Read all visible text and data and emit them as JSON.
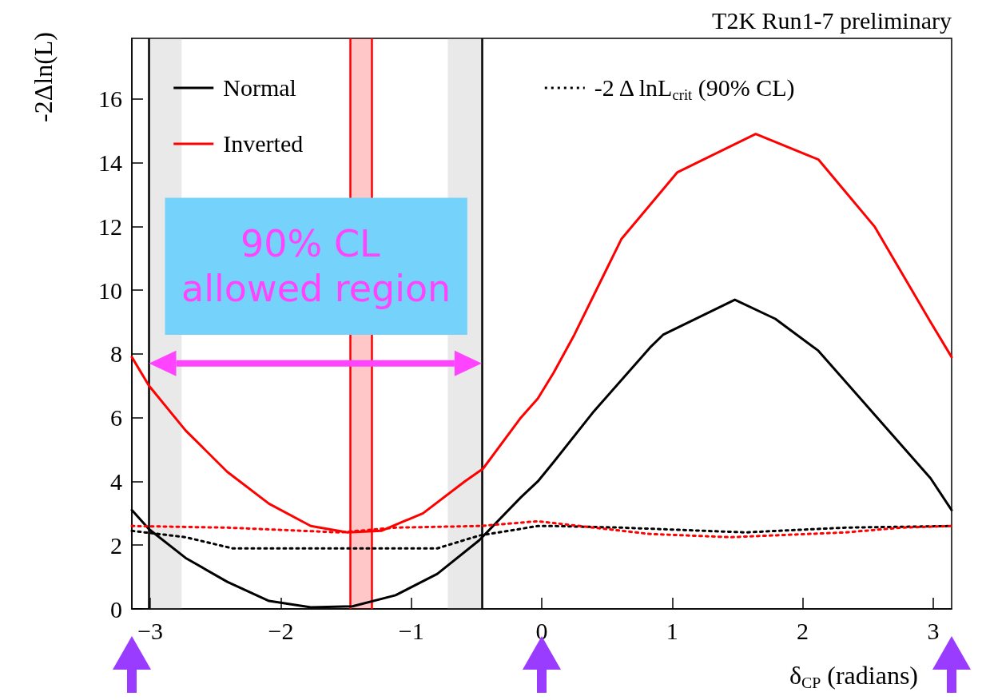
{
  "chart_data": {
    "type": "line",
    "annotations": [
      "T2K Run1-7 preliminary",
      "90% CL allowed region"
    ],
    "xlabel": "δ$_{CP}$ (radians)",
    "ylabel": "-2Δln(L)",
    "xlim": [
      -3.1416,
      3.1416
    ],
    "ylim": [
      0,
      17.9
    ],
    "xticks": [
      {
        "value": -3,
        "label": "−3"
      },
      {
        "value": -2,
        "label": "−2"
      },
      {
        "value": -1,
        "label": "−1"
      },
      0,
      1,
      2,
      3
    ],
    "yticks": [
      0,
      2,
      4,
      6,
      8,
      10,
      12,
      14,
      16
    ],
    "grid": false,
    "legend": "top",
    "marker": "none",
    "series": [
      {
        "name": "Normal",
        "color": "#000000",
        "line_style": "solid",
        "x": [
          -3.1416,
          -3.01,
          -2.73,
          -2.41,
          -2.09,
          -1.77,
          -1.45,
          -1.12,
          -0.8,
          -0.48,
          -0.16,
          -0.03,
          0.09,
          0.4,
          0.83,
          0.93,
          1.48,
          1.79,
          2.12,
          2.55,
          2.98,
          3.1416
        ],
        "values": [
          3.1,
          2.5,
          1.6,
          0.85,
          0.25,
          0.05,
          0.08,
          0.43,
          1.1,
          2.15,
          3.5,
          4.0,
          4.6,
          6.2,
          8.2,
          8.6,
          9.7,
          9.1,
          8.1,
          6.1,
          4.1,
          3.1
        ]
      },
      {
        "name": "Inverted",
        "color": "#ff0000",
        "line_style": "solid",
        "x": [
          -3.1416,
          -3.01,
          -2.73,
          -2.41,
          -2.09,
          -1.77,
          -1.49,
          -1.23,
          -0.91,
          -0.59,
          -0.45,
          -0.16,
          -0.03,
          0.09,
          0.25,
          0.61,
          1.04,
          1.64,
          2.12,
          2.55,
          2.98,
          3.1416
        ],
        "values": [
          7.9,
          7.0,
          5.6,
          4.3,
          3.3,
          2.6,
          2.4,
          2.45,
          3.0,
          4.0,
          4.4,
          6.0,
          6.6,
          7.4,
          8.6,
          11.6,
          13.7,
          14.9,
          14.1,
          12.0,
          9.0,
          7.9
        ]
      },
      {
        "name": "-2 Δ lnL$_{crit}$ (90% CL)",
        "color": "#000000",
        "line_style": "dotted",
        "x": [
          -3.1416,
          -2.73,
          -2.37,
          -1.5,
          -0.8,
          -0.48,
          -0.03,
          0.09,
          0.61,
          1.56,
          2.33,
          3.1416
        ],
        "values": [
          2.45,
          2.25,
          1.9,
          1.9,
          1.9,
          2.3,
          2.6,
          2.6,
          2.55,
          2.4,
          2.55,
          2.6
        ]
      },
      {
        "color": "#ff0000",
        "line_style": "dotted",
        "x": [
          -3.1416,
          -2.41,
          -1.55,
          -1.12,
          -0.48,
          -0.03,
          0.4,
          0.83,
          1.45,
          2.33,
          2.76,
          3.1416
        ],
        "values": [
          2.6,
          2.55,
          2.4,
          2.55,
          2.6,
          2.75,
          2.55,
          2.35,
          2.25,
          2.4,
          2.55,
          2.6
        ]
      }
    ],
    "ref_lines": [
      {
        "axis": "x",
        "value": -3.01,
        "color": "#000000"
      },
      {
        "axis": "x",
        "value": -0.46,
        "color": "#000000"
      },
      {
        "axis": "x",
        "value": -1.47,
        "color": "#ff0000"
      },
      {
        "axis": "x",
        "value": -1.3,
        "color": "#ff0000"
      }
    ],
    "bands": [
      {
        "axis": "x",
        "from": -3.01,
        "to": -2.76,
        "color": "#999999"
      },
      {
        "axis": "x",
        "from": -0.72,
        "to": -0.46,
        "color": "#999999"
      },
      {
        "axis": "x",
        "from": -1.47,
        "to": -1.3,
        "color": "#ff0000"
      }
    ]
  }
}
